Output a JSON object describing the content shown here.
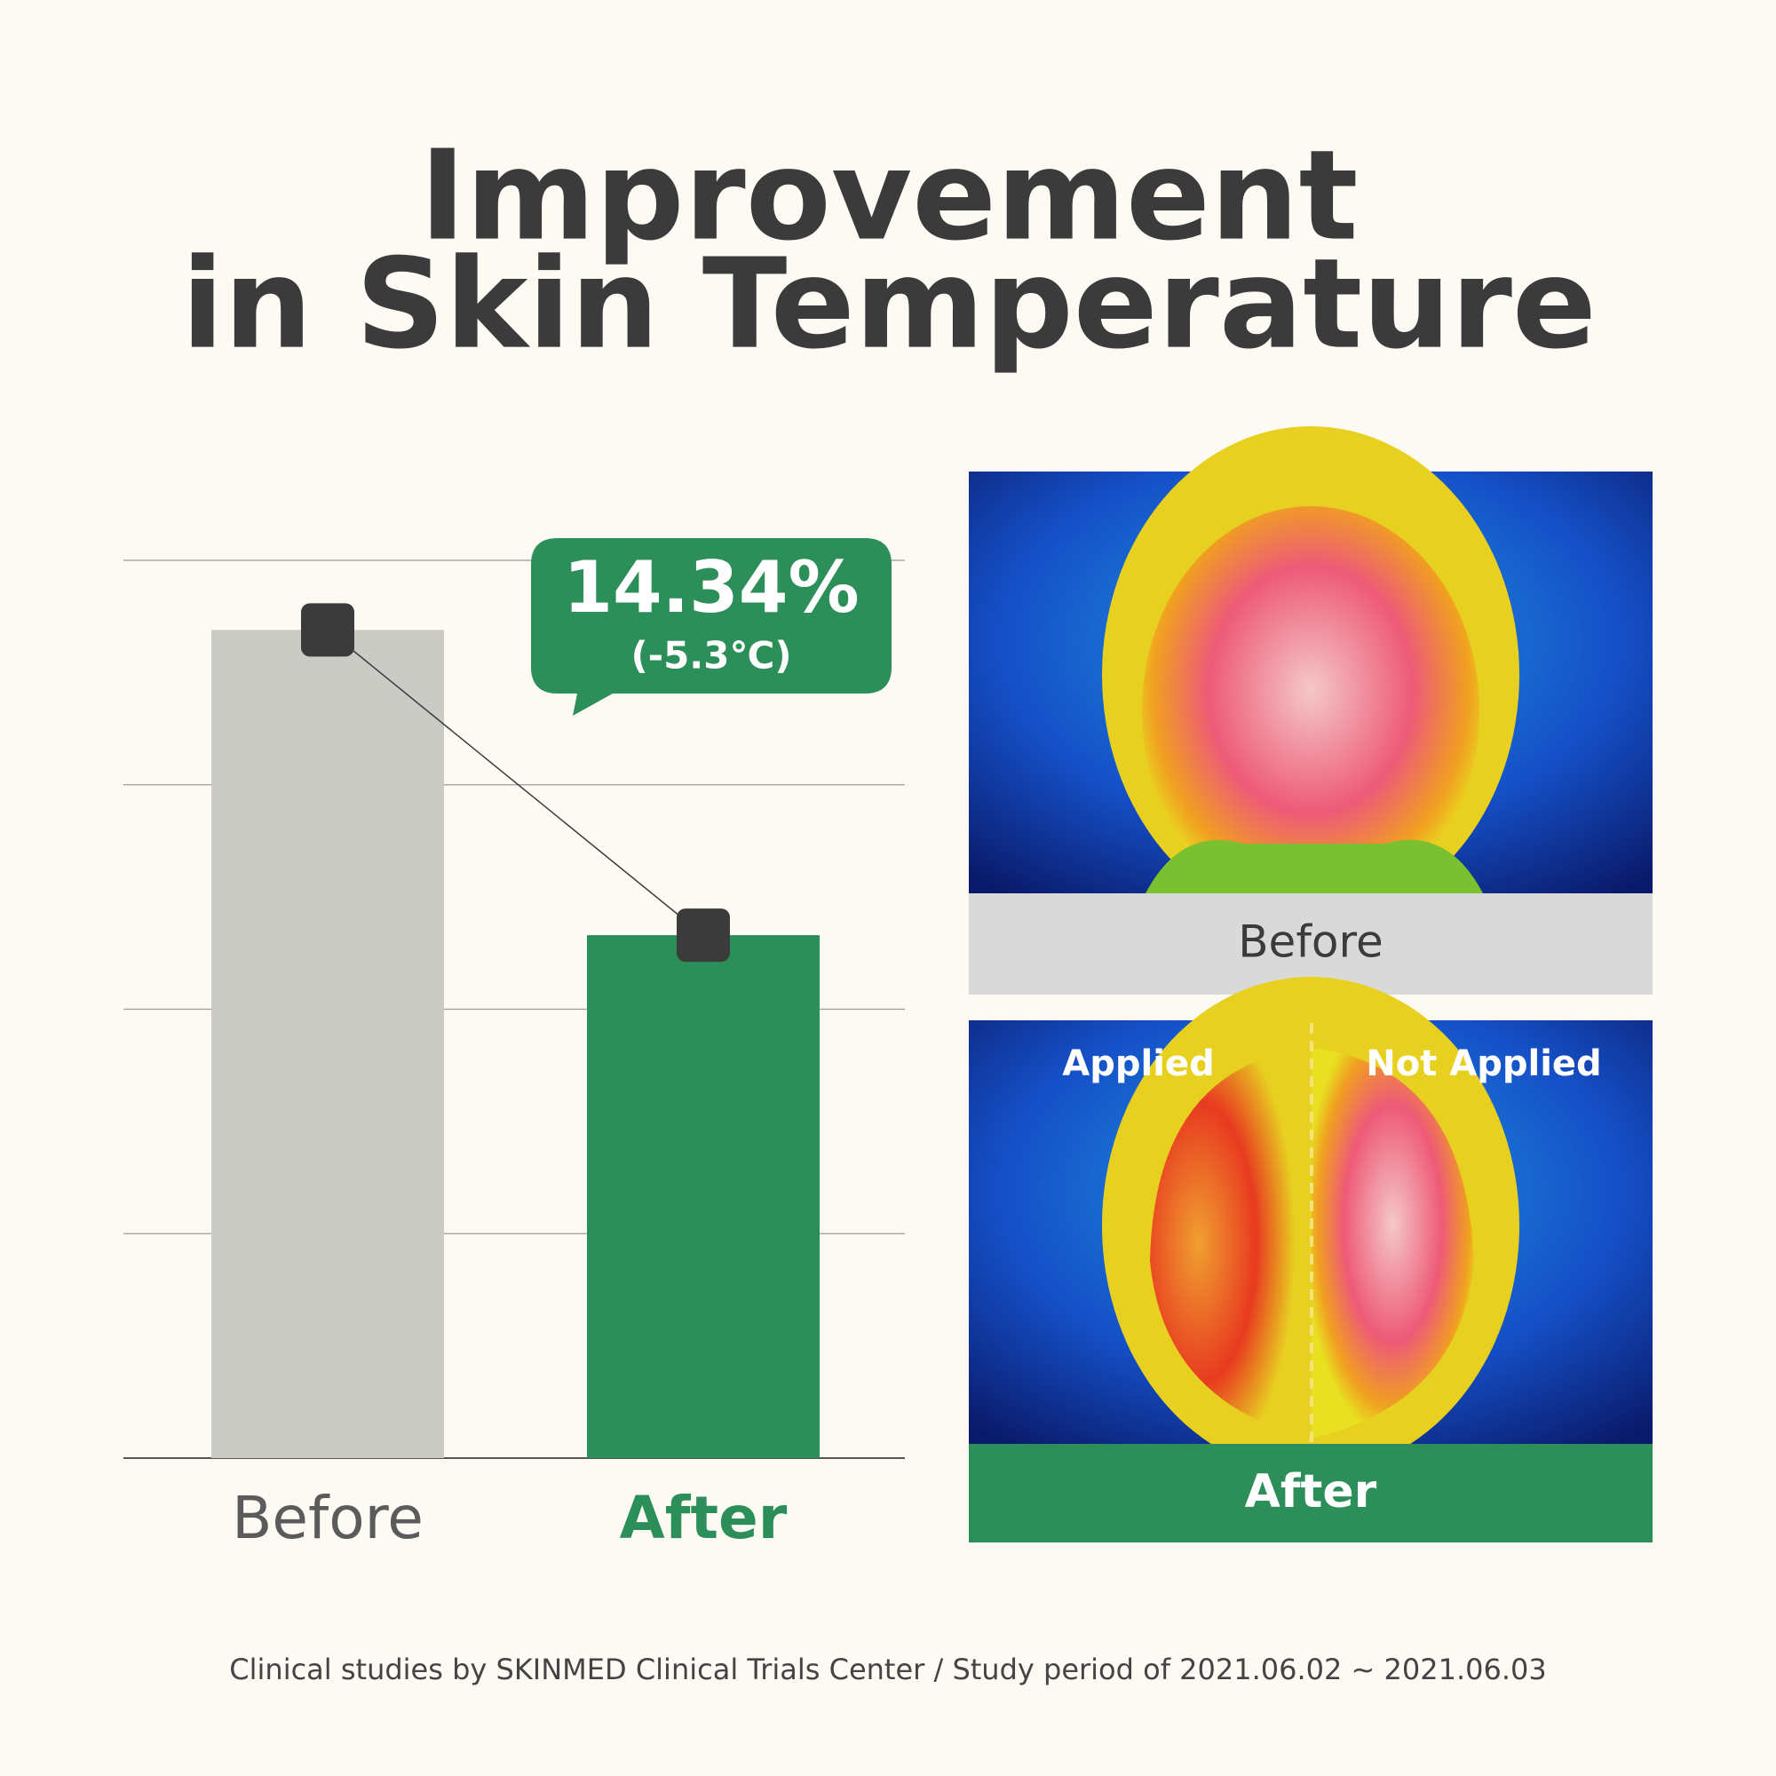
{
  "title": {
    "lines": [
      "Improvement",
      "in Skin Temperature"
    ]
  },
  "chart_data": {
    "type": "bar",
    "categories": [
      "Before",
      "After"
    ],
    "values": [
      3.69,
      2.33
    ],
    "colors": [
      "#cbcbc6",
      "#2c8f5a"
    ],
    "label_colors": [
      "#5b5b5b",
      "#2c8f5a"
    ],
    "ylim": [
      0,
      4
    ],
    "yticks": [
      0,
      1,
      2,
      3,
      4
    ],
    "grid": true,
    "connect_line": true,
    "annotation": {
      "value": "14.34%",
      "detail": "(-5.3℃)"
    }
  },
  "thermal_images": [
    {
      "label": "Before"
    },
    {
      "label": "After",
      "left_note": "Applied",
      "right_note": "Not Applied"
    }
  ],
  "footnote": "Clinical studies by SKINMED Clinical Trials Center / Study period of 2021.06.02 ~ 2021.06.03"
}
